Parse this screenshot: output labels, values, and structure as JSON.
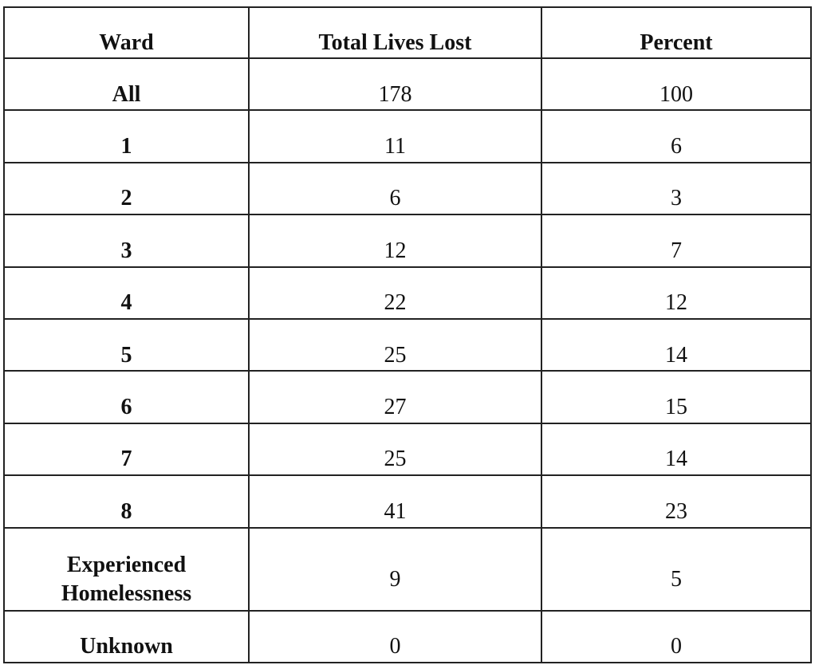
{
  "table": {
    "header": [
      "Ward",
      "Total Lives Lost",
      "Percent"
    ],
    "rows": [
      [
        "All",
        178,
        100
      ],
      [
        "1",
        11,
        6
      ],
      [
        "2",
        6,
        3
      ],
      [
        "3",
        12,
        7
      ],
      [
        "4",
        22,
        12
      ],
      [
        "5",
        25,
        14
      ],
      [
        "6",
        27,
        15
      ],
      [
        "7",
        25,
        14
      ],
      [
        "8",
        41,
        23
      ],
      [
        "Experienced Homelessness",
        9,
        5
      ],
      [
        "Unknown",
        0,
        0
      ]
    ]
  }
}
